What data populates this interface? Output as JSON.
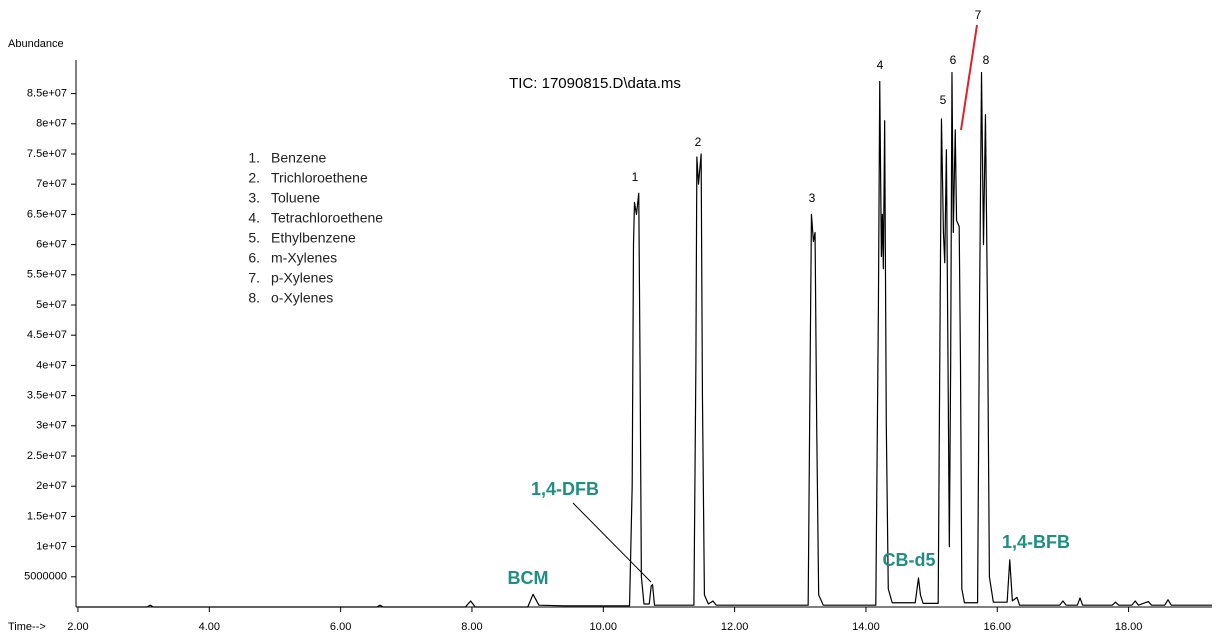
{
  "chart_data": {
    "type": "line",
    "title": "TIC: 17090815.D\\data.ms",
    "ylabel": "Abundance",
    "xlabel": "Time-->",
    "color": "#000000",
    "x": [
      2.0,
      3.05,
      3.1,
      3.15,
      6.55,
      6.6,
      6.65,
      7.9,
      7.98,
      8.05,
      8.85,
      8.93,
      9.02,
      9.4,
      10.4,
      10.44,
      10.46,
      10.475,
      10.505,
      10.54,
      10.56,
      10.58,
      10.62,
      10.7,
      10.73,
      10.75,
      10.78,
      11.38,
      11.41,
      11.425,
      11.45,
      11.49,
      11.51,
      11.54,
      11.6,
      11.67,
      11.72,
      13.12,
      13.15,
      13.17,
      13.2,
      13.225,
      13.25,
      13.28,
      13.35,
      14.15,
      14.19,
      14.21,
      14.235,
      14.25,
      14.265,
      14.285,
      14.31,
      14.34,
      14.4,
      14.75,
      14.8,
      14.83,
      14.87,
      15.1,
      15.13,
      15.15,
      15.18,
      15.2,
      15.225,
      15.25,
      15.27,
      15.29,
      15.31,
      15.33,
      15.36,
      15.38,
      15.42,
      15.44,
      15.46,
      15.5,
      15.7,
      15.73,
      15.76,
      15.79,
      15.82,
      15.85,
      15.88,
      15.94,
      16.15,
      16.19,
      16.23,
      16.3,
      16.34,
      16.95,
      17.0,
      17.05,
      17.22,
      17.26,
      17.3,
      17.75,
      17.8,
      17.85,
      18.05,
      18.1,
      18.15,
      18.3,
      18.35,
      18.55,
      18.6,
      18.65,
      19.27
    ],
    "values": [
      0,
      0,
      300000,
      0,
      0,
      300000,
      0,
      0,
      1000000,
      0,
      0,
      2100000,
      300000,
      200000,
      200000,
      20000000,
      60000000,
      67000000,
      65000000,
      68500000,
      40000000,
      5000000,
      500000,
      500000,
      3500000,
      3700000,
      300000,
      300000,
      40000000,
      74500000,
      70000000,
      75000000,
      35000000,
      2000000,
      500000,
      1000000,
      300000,
      300000,
      40000000,
      65000000,
      60500000,
      62000000,
      30000000,
      2000000,
      300000,
      300000,
      50000000,
      87000000,
      58000000,
      65000000,
      56000000,
      80500000,
      30000000,
      3000000,
      700000,
      700000,
      4800000,
      2000000,
      600000,
      600000,
      50000000,
      80800000,
      62000000,
      57000000,
      75700000,
      40000000,
      10000000,
      40000000,
      88500000,
      62000000,
      79000000,
      64000000,
      63000000,
      40000000,
      3000000,
      700000,
      700000,
      50000000,
      88500000,
      60000000,
      81500000,
      50000000,
      5000000,
      800000,
      800000,
      7800000,
      1000000,
      1600000,
      300000,
      300000,
      1000000,
      300000,
      300000,
      1500000,
      300000,
      300000,
      800000,
      300000,
      300000,
      1000000,
      300000,
      900000,
      300000,
      300000,
      1200000,
      300000,
      300000
    ],
    "xlim": [
      1.97,
      19.27
    ],
    "ylim": [
      0,
      90000000
    ],
    "xticks": [
      {
        "value": 2,
        "label": "2.00"
      },
      {
        "value": 4,
        "label": "4.00"
      },
      {
        "value": 6,
        "label": "6.00"
      },
      {
        "value": 8,
        "label": "8.00"
      },
      {
        "value": 10,
        "label": "10.00"
      },
      {
        "value": 12,
        "label": "12.00"
      },
      {
        "value": 14,
        "label": "14.00"
      },
      {
        "value": 16,
        "label": "16.00"
      },
      {
        "value": 18,
        "label": "18.00"
      }
    ],
    "yticks": [
      5000000,
      {
        "value": 10000000,
        "label": "1e+07"
      },
      {
        "value": 15000000,
        "label": "1.5e+07"
      },
      {
        "value": 20000000,
        "label": "2e+07"
      },
      {
        "value": 25000000,
        "label": "2.5e+07"
      },
      {
        "value": 30000000,
        "label": "3e+07"
      },
      {
        "value": 35000000,
        "label": "3.5e+07"
      },
      {
        "value": 40000000,
        "label": "4e+07"
      },
      {
        "value": 45000000,
        "label": "4.5e+07"
      },
      {
        "value": 50000000,
        "label": "5e+07"
      },
      {
        "value": 55000000,
        "label": "5.5e+07"
      },
      {
        "value": 60000000,
        "label": "6e+07"
      },
      {
        "value": 65000000,
        "label": "6.5e+07"
      },
      {
        "value": 70000000,
        "label": "7e+07"
      },
      {
        "value": 75000000,
        "label": "7.5e+07"
      },
      {
        "value": 80000000,
        "label": "8e+07"
      },
      {
        "value": 85000000,
        "label": "8.5e+07"
      }
    ],
    "peak_labels": [
      "1",
      "2",
      "3",
      "4",
      "5",
      "6",
      "7",
      "8"
    ],
    "legend_items": [
      {
        "marker": "1.",
        "name": "Benzene"
      },
      {
        "marker": "2.",
        "name": "Trichloroethene"
      },
      {
        "marker": "3.",
        "name": "Toluene"
      },
      {
        "marker": "4.",
        "name": "Tetrachloroethene"
      },
      {
        "marker": "5.",
        "name": "Ethylbenzene"
      },
      {
        "marker": "6.",
        "name": "m-Xylenes"
      },
      {
        "marker": "7.",
        "name": "p-Xylenes"
      },
      {
        "marker": "8.",
        "name": "o-Xylenes"
      }
    ],
    "annotations": [
      {
        "text": "BCM"
      },
      {
        "text": "1,4-DFB"
      },
      {
        "text": "CB-d5"
      },
      {
        "text": "1,4-BFB"
      }
    ]
  }
}
